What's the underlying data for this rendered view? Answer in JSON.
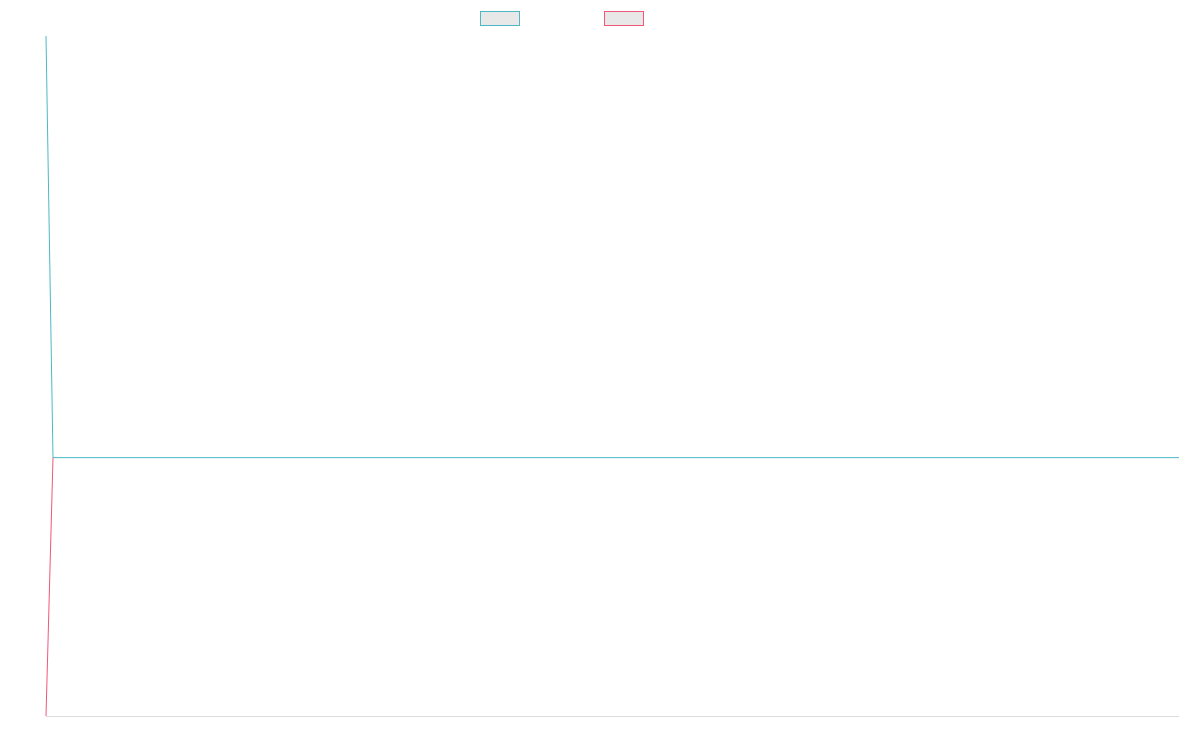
{
  "chart_data": {
    "type": "line",
    "title": "",
    "xlabel": "",
    "ylabel": "",
    "grid": false,
    "legend_position": "top-center",
    "series": [
      {
        "name": "",
        "color": "#4bb8c4",
        "fill": "#e8e8e8",
        "x": [
          0,
          1,
          2
        ],
        "y": [
          1,
          0.38,
          0.38
        ]
      },
      {
        "name": "",
        "color": "#f0577b",
        "fill": "#e8e8e8",
        "x": [
          0,
          1
        ],
        "y": [
          0,
          0.38
        ]
      }
    ],
    "axis_color": "#dddddd"
  }
}
